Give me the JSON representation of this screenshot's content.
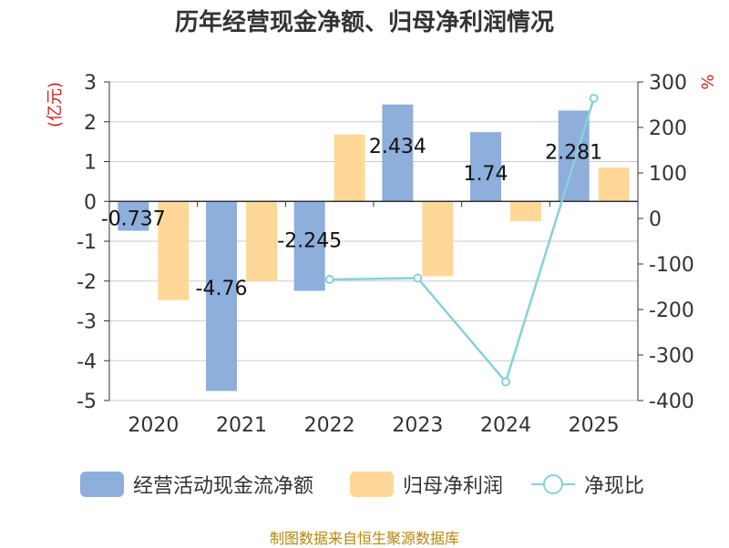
{
  "chart_data": {
    "type": "bar",
    "title": "历年经营现金净额、归母净利润情况",
    "categories": [
      "2020",
      "2021",
      "2022",
      "2023",
      "2024",
      "2025"
    ],
    "ylabel": "(亿元)",
    "y2label": "%",
    "ylim": [
      -5,
      3
    ],
    "y2lim": [
      -400,
      300
    ],
    "yticks": [
      "3",
      "2",
      "1",
      "0",
      "-1",
      "-2",
      "-3",
      "-4",
      "-5"
    ],
    "y2ticks": [
      "300",
      "200",
      "100",
      "0",
      "-100",
      "-200",
      "-300",
      "-400"
    ],
    "series": [
      {
        "name": "经营活动现金流净额",
        "type": "bar",
        "color": "#8eaedc",
        "values": [
          -0.737,
          -4.76,
          -2.245,
          2.434,
          1.74,
          2.281
        ],
        "labels": [
          "-0.737",
          "-4.76",
          "-2.245",
          "2.434",
          "1.74",
          "2.281"
        ]
      },
      {
        "name": "归母净利润",
        "type": "bar",
        "color": "#ffd898",
        "values": [
          -2.48,
          -2.0,
          1.68,
          -1.88,
          -0.5,
          0.85
        ]
      },
      {
        "name": "净现比",
        "type": "line",
        "axis": "right",
        "color": "#88d0d8",
        "values": [
          null,
          null,
          -134,
          -131,
          -359,
          264
        ]
      }
    ],
    "source": "制图数据来自恒生聚源数据库"
  }
}
